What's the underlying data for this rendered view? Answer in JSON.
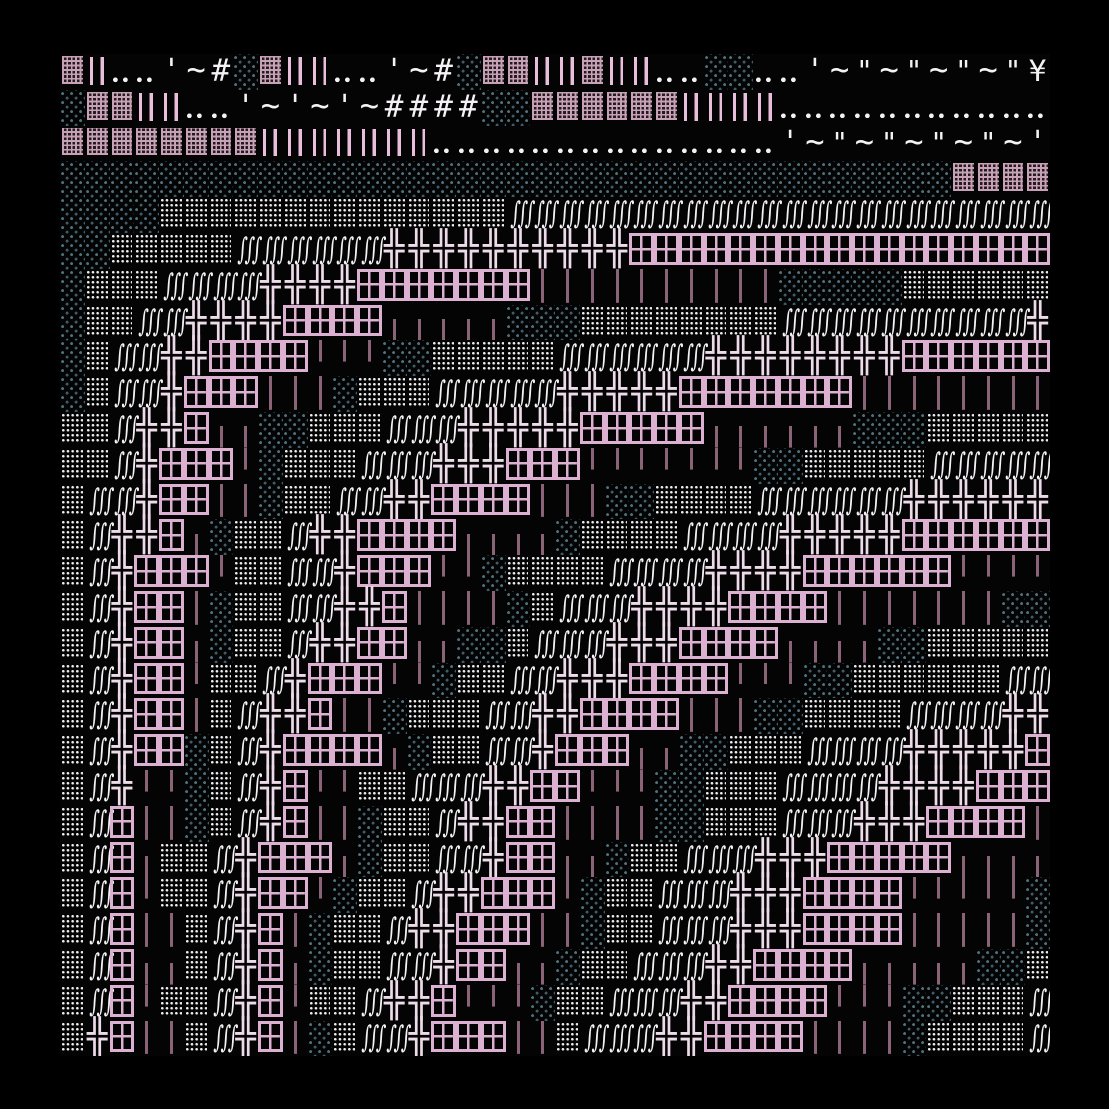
{
  "artwork": {
    "kind": "ascii-art-grid",
    "columns": 40,
    "rows_count": 28,
    "palette": {
      "background": "#000000",
      "art_background": "#040405",
      "teal_dots": "#4e707c",
      "white_glyph": "#f4f2f4",
      "white_dots": "#edecee",
      "window_pink": "#dbb0d0",
      "double_bar_pink": "#e9bedb",
      "woven_block_mauve": "#c7a1b5",
      "dark_bar_mauve": "#8b6376",
      "cross_pink_white": "#eedbe9"
    },
    "legend": {
      "b": {
        "name": "woven-block",
        "char": "▓"
      },
      "B": {
        "name": "double-bar",
        "char": "║"
      },
      ".": {
        "name": "baseline-dots",
        "char": "‥"
      },
      "'": {
        "name": "apostrophe",
        "char": "'"
      },
      "~": {
        "name": "tilde",
        "char": "~"
      },
      "\"": {
        "name": "double-prime",
        "char": "\""
      },
      "#": {
        "name": "hash",
        "char": "#"
      },
      "Y": {
        "name": "yen",
        "char": "¥"
      },
      "d": {
        "name": "teal-dot-field",
        "char": "░"
      },
      "D": {
        "name": "white-dot-block",
        "char": "▒"
      },
      "s": {
        "name": "triple-integral",
        "char": "∫∫∫"
      },
      "+": {
        "name": "double-cross",
        "char": "╬"
      },
      "W": {
        "name": "window-pane",
        "char": "⊞"
      },
      "|": {
        "name": "thin-bar",
        "char": "│"
      },
      " ": {
        "name": "blank",
        "char": " "
      }
    },
    "rows": [
      "bB..'~#dbBB..'~#dbbBBbBB..dd..'~\"~\"~\"~\"Y",
      "dbbBB..'~'~'~####ddbbbbbbBBBB...........",
      "bbbbbbbbBBBBBBB..............'~\"~\"~\"~\"~'",
      "ddddddddddddddddddddddddddddddddddddbbbb",
      "ddddDDDDDDDDDDDDDDssssssssssssssssssssss",
      "ddDDDDDssssss++++++++++WWWWWWWWWWWWWWWWW",
      "dDDDssss++++WWWWWWW||||||||||dddddDDDDDD",
      "dDDss++++WWWW|||||dddDDDDDDDDssssssssss+",
      "dDss++WWWW|||ddDDDDDssssss++++++++WWWWWW",
      "dDss+WWW|||dDDDsssss+++++WWWWWWW||||||||",
      "DDs++W||ddDDDsss+++++WWWWW||||||dddDDDDD",
      "DDs+WWW|dDDDsss+++WWW|||||||ddDDDDDsssss",
      "Dss+WW||dDDss++WWWW|||ddDDDDssssss++++++",
      "Ds++W|dDDs++WWWW||||dDDDDssss+++++WWWWWW",
      "Ds+WWW|DDss+WWW||dDDDDssss++++WWWWWW||||",
      "Ds+WW|dDDss++W||||dDsss++++WWWW|||||||dd",
      "Ds+WW|dDDs++WW||ddDsss+++WWWW||||ddDDDDD",
      "Ds+WW|DDs+WWW||dDDss+++WWWW|||ddDDDDDDss",
      "Ds+WW|Ds++W||dDDDss++WWWW|||ddDDDDssss++",
      "Ds+WWdDs+WWWW|dDDss+WWW||ddDDDssss+++++W",
      "Ds+||dDs+W||DDsss++WW|||ddDDDssss++++WWW",
      "DsW||dDs+W||dDDs++WW||||ddDDDsss+++WWWW|",
      "DsW|DDs+WWW|dDDss+WW||dDDsss+++WWWWW||||",
      "DsW|DDs+WW|dDDs++WWW|dDDsss+++WWWW|||||d",
      "DsW||Ds+W|dDDs++WWW||dDDsss+++WWWW|||||d",
      "DsW||Ds+W|dDDss+WW||dDDsss++WWWW|||||ddD",
      "DsW|DDs+W|DDs++W|||dDDsss++WWWW|||ddDDDs",
      "D+W||Ds+W|dDss+WWW||Dsss++WWWW||||dDDDDs"
    ]
  }
}
